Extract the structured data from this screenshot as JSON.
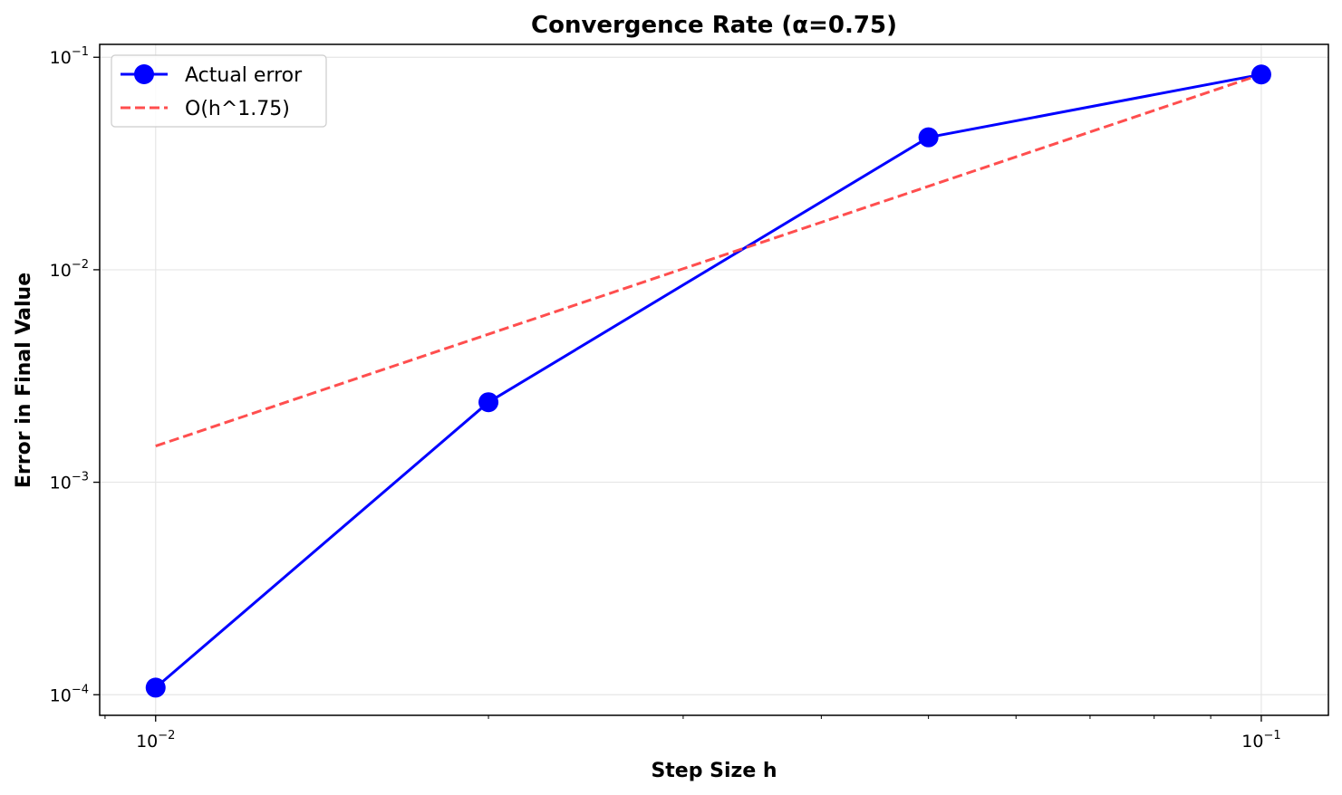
{
  "chart_data": {
    "type": "line",
    "title": "Convergence Rate (α=0.75)",
    "xlabel": "Step Size h",
    "ylabel": "Error in Final Value",
    "xscale": "log",
    "yscale": "log",
    "xlim": [
      0.0089,
      0.115
    ],
    "ylim": [
      8e-05,
      0.115
    ],
    "x_ticks": [
      {
        "value": 0.01,
        "base": "10",
        "exp": "−2"
      },
      {
        "value": 0.1,
        "base": "10",
        "exp": "−1"
      }
    ],
    "y_ticks": [
      {
        "value": 0.0001,
        "base": "10",
        "exp": "−4"
      },
      {
        "value": 0.001,
        "base": "10",
        "exp": "−3"
      },
      {
        "value": 0.01,
        "base": "10",
        "exp": "−2"
      },
      {
        "value": 0.1,
        "base": "10",
        "exp": "−1"
      }
    ],
    "grid": true,
    "legend_position": "upper-left",
    "series": [
      {
        "name": "Actual error",
        "style": "solid",
        "marker": "circle",
        "color": "#0000ff",
        "x": [
          0.01,
          0.02,
          0.05,
          0.1
        ],
        "y": [
          0.000108,
          0.00238,
          0.042,
          0.083
        ]
      },
      {
        "name": "O(h^1.75)",
        "style": "dashed",
        "marker": "none",
        "color": "#ff4444",
        "x": [
          0.01,
          0.1
        ],
        "y": [
          0.00148,
          0.083
        ]
      }
    ]
  }
}
